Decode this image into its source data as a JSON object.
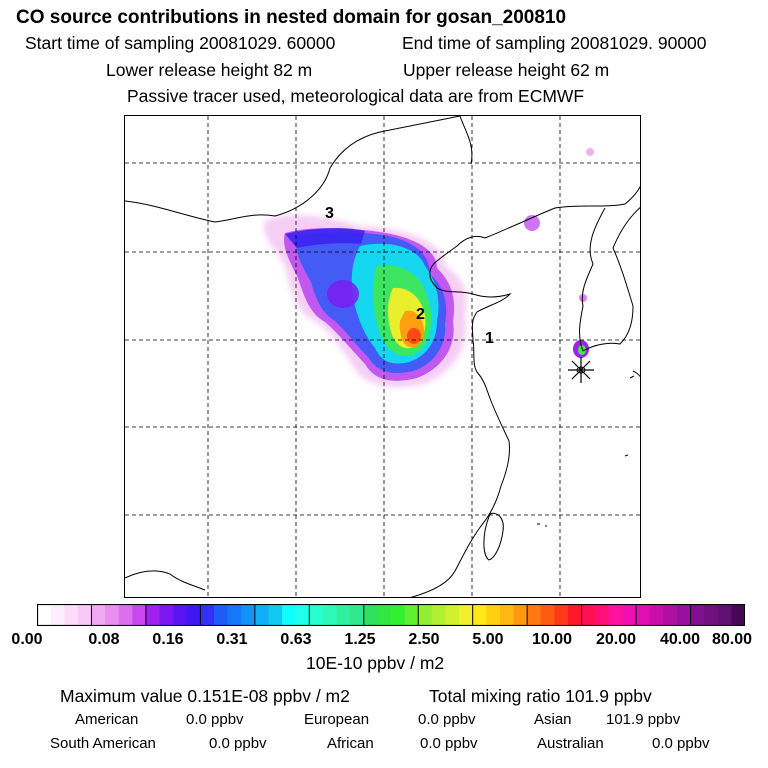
{
  "header": {
    "title": "CO  source contributions in nested domain for gosan_200810",
    "start_label": "Start time of sampling 20081029. 60000",
    "end_label": "End time of sampling 20081029. 90000",
    "lower_label": "Lower release height   82 m",
    "upper_label": "Upper release height   62 m",
    "tracer_line": "Passive tracer used, meteorological data are from ECMWF"
  },
  "map": {
    "region_labels": [
      "3",
      "2",
      "1"
    ],
    "station_marker": "asterisk-icon"
  },
  "colorbar": {
    "tick_labels": [
      "0.00",
      "0.08",
      "0.16",
      "0.31",
      "0.63",
      "1.25",
      "2.50",
      "5.00",
      "10.00",
      "20.00",
      "40.00",
      "80.00"
    ],
    "colors": [
      "#ffffff",
      "#fdeefd",
      "#fbdcfb",
      "#f8c8f8",
      "#f0a8f0",
      "#e890ee",
      "#dc70ec",
      "#c848f0",
      "#a020f0",
      "#7a18f2",
      "#5a14f4",
      "#3c18f4",
      "#3030f8",
      "#1e5cf8",
      "#1478f8",
      "#1094f8",
      "#10b0f8",
      "#10c8f0",
      "#10ffff",
      "#20ffea",
      "#28ffd0",
      "#30f8b8",
      "#30f0a0",
      "#30e890",
      "#30e060",
      "#30e840",
      "#30f030",
      "#60f030",
      "#90f030",
      "#b0f030",
      "#d0f030",
      "#f0f030",
      "#ffe818",
      "#ffd010",
      "#ffb810",
      "#ff9a10",
      "#ff7a10",
      "#ff5a14",
      "#ff3a18",
      "#ff1828",
      "#ff1050",
      "#ff1078",
      "#ff10a0",
      "#f010b0",
      "#e010b0",
      "#c810a8",
      "#b010a0",
      "#98109c",
      "#801090",
      "#701080",
      "#601070",
      "#480858"
    ],
    "unit_label": "10E-10 ppbv / m2"
  },
  "summary": {
    "max_line": "Maximum value  0.151E-08 ppbv / m2",
    "total_line": "Total mixing ratio      101.9 ppbv",
    "regions": [
      {
        "name": "American",
        "value": "0.0 ppbv"
      },
      {
        "name": "European",
        "value": "0.0 ppbv"
      },
      {
        "name": "Asian",
        "value": "101.9 ppbv"
      },
      {
        "name": "South American",
        "value": "0.0 ppbv"
      },
      {
        "name": "African",
        "value": "0.0 ppbv"
      },
      {
        "name": "Australian",
        "value": "0.0 ppbv"
      }
    ]
  }
}
